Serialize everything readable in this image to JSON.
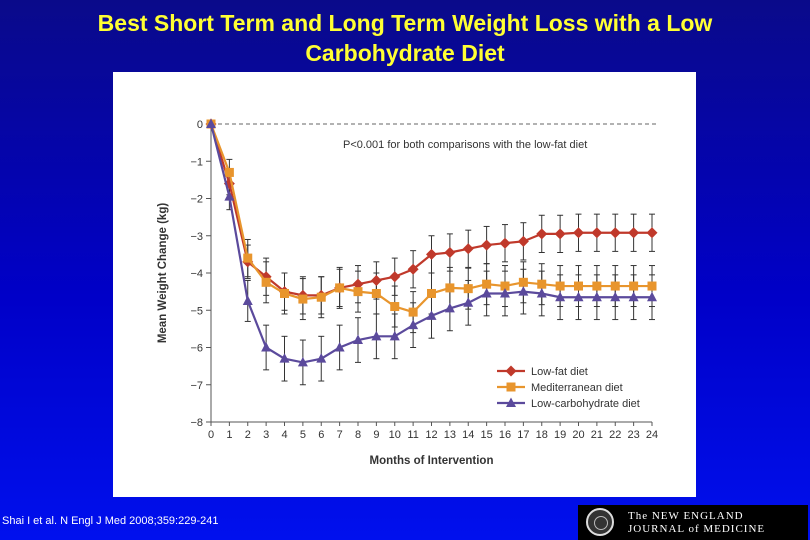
{
  "slide": {
    "title_line1": "Best Short Term and Long Term Weight Loss with a Low",
    "title_line2": "Carbohydrate Diet",
    "citation": "Shai I et al. N Engl J Med 2008;359:229-241",
    "logo_line1": "The NEW ENGLAND",
    "logo_line2": "JOURNAL of MEDICINE"
  },
  "colors": {
    "background": "#0000c8",
    "title": "#ffff33",
    "low_fat": "#c0392b",
    "mediterranean": "#e8952d",
    "low_carb": "#5b4a9c",
    "axis": "#555555",
    "error_bar": "#333333"
  },
  "chart_data": {
    "type": "line",
    "xlabel": "Months of Intervention",
    "ylabel": "Mean Weight Change (kg)",
    "xlim": [
      0,
      24
    ],
    "ylim": [
      -8,
      0
    ],
    "x": [
      0,
      1,
      2,
      3,
      4,
      5,
      6,
      7,
      8,
      9,
      10,
      11,
      12,
      13,
      14,
      15,
      16,
      17,
      18,
      19,
      20,
      21,
      22,
      23,
      24
    ],
    "x_tick_labels": [
      "0",
      "1",
      "2",
      "3",
      "4",
      "5",
      "6",
      "7",
      "8",
      "9",
      "10",
      "11",
      "12",
      "13",
      "14",
      "15",
      "16",
      "17",
      "18",
      "19",
      "20",
      "21",
      "22",
      "23",
      "24"
    ],
    "y_ticks": [
      0,
      -1,
      -2,
      -3,
      -4,
      -5,
      -6,
      -7,
      -8
    ],
    "y_tick_labels": [
      "0",
      "−1",
      "−2",
      "−3",
      "−4",
      "−5",
      "−6",
      "−7",
      "−8"
    ],
    "annotation": "P<0.001 for both comparisons with the low-fat diet",
    "reference_line": 0,
    "legend_position": "bottom-right",
    "series": [
      {
        "name": "Low-fat diet",
        "marker": "diamond",
        "color": "#c0392b",
        "values": [
          0,
          -1.6,
          -3.7,
          -4.1,
          -4.5,
          -4.6,
          -4.6,
          -4.4,
          -4.3,
          -4.2,
          -4.1,
          -3.9,
          -3.5,
          -3.45,
          -3.35,
          -3.25,
          -3.2,
          -3.15,
          -2.95,
          -2.95,
          -2.92,
          -2.92,
          -2.92,
          -2.92,
          -2.92
        ],
        "error": [
          0,
          0.3,
          0.45,
          0.5,
          0.5,
          0.5,
          0.5,
          0.5,
          0.5,
          0.5,
          0.5,
          0.5,
          0.5,
          0.5,
          0.5,
          0.5,
          0.5,
          0.5,
          0.5,
          0.5,
          0.5,
          0.5,
          0.5,
          0.5,
          0.5
        ]
      },
      {
        "name": "Mediterranean diet",
        "marker": "square",
        "color": "#e8952d",
        "values": [
          0,
          -1.3,
          -3.6,
          -4.25,
          -4.55,
          -4.7,
          -4.65,
          -4.4,
          -4.5,
          -4.55,
          -4.9,
          -5.05,
          -4.55,
          -4.4,
          -4.42,
          -4.3,
          -4.35,
          -4.25,
          -4.3,
          -4.35,
          -4.35,
          -4.35,
          -4.35,
          -4.35,
          -4.35
        ],
        "error": [
          0,
          0.35,
          0.5,
          0.55,
          0.55,
          0.55,
          0.55,
          0.55,
          0.55,
          0.55,
          0.55,
          0.55,
          0.55,
          0.55,
          0.55,
          0.55,
          0.55,
          0.55,
          0.55,
          0.55,
          0.55,
          0.55,
          0.55,
          0.55,
          0.55
        ]
      },
      {
        "name": "Low-carbohydrate diet",
        "marker": "triangle",
        "color": "#5b4a9c",
        "values": [
          0,
          -1.95,
          -4.75,
          -6.0,
          -6.3,
          -6.4,
          -6.3,
          -6.0,
          -5.8,
          -5.7,
          -5.7,
          -5.4,
          -5.15,
          -4.95,
          -4.8,
          -4.55,
          -4.55,
          -4.5,
          -4.55,
          -4.65,
          -4.65,
          -4.65,
          -4.65,
          -4.65,
          -4.65
        ],
        "error": [
          0,
          0.35,
          0.55,
          0.6,
          0.6,
          0.6,
          0.6,
          0.6,
          0.6,
          0.6,
          0.6,
          0.6,
          0.6,
          0.6,
          0.6,
          0.6,
          0.6,
          0.6,
          0.6,
          0.6,
          0.6,
          0.6,
          0.6,
          0.6,
          0.6
        ]
      }
    ]
  }
}
